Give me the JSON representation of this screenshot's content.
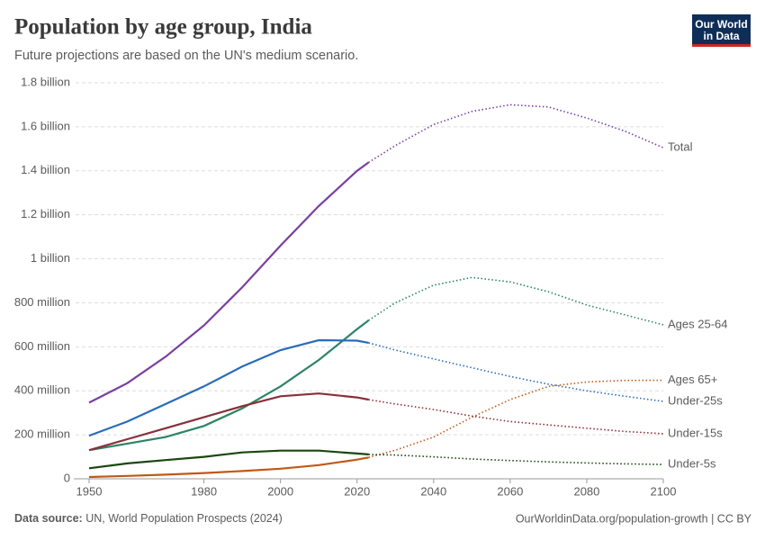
{
  "chart_data": {
    "type": "line",
    "title": "Population by age group, India",
    "subtitle": "Future projections are based on the UN's medium scenario.",
    "logo": [
      "Our World",
      "in Data"
    ],
    "source_label": "Data source:",
    "source": "UN, World Population Prospects (2024)",
    "url": "OurWorldinData.org/population-growth | CC BY",
    "x": [
      1950,
      1960,
      1970,
      1980,
      1990,
      2000,
      2010,
      2020,
      2023,
      2030,
      2040,
      2050,
      2060,
      2070,
      2080,
      2090,
      2100
    ],
    "projection_from": 2023,
    "xlim": [
      1946,
      2100
    ],
    "xticks": [
      1950,
      1980,
      2000,
      2020,
      2040,
      2060,
      2080,
      2100
    ],
    "ylim": [
      0,
      1800
    ],
    "yticks": [
      0,
      {
        "value": 200,
        "label": "200 million"
      },
      {
        "value": 400,
        "label": "400 million"
      },
      {
        "value": 600,
        "label": "600 million"
      },
      {
        "value": 800,
        "label": "800 million"
      },
      {
        "value": 1000,
        "label": "1 billion"
      },
      {
        "value": 1200,
        "label": "1.2 billion"
      },
      {
        "value": 1400,
        "label": "1.4 billion"
      },
      {
        "value": 1600,
        "label": "1.6 billion"
      },
      {
        "value": 1800,
        "label": "1.8 billion"
      }
    ],
    "grid": true,
    "series": [
      {
        "name": "Total",
        "color": "#7a3fa0",
        "values": [
          346,
          435,
          555,
          697,
          870,
          1060,
          1240,
          1400,
          1438,
          1515,
          1610,
          1670,
          1700,
          1690,
          1640,
          1580,
          1505
        ]
      },
      {
        "name": "Ages 25-64",
        "color": "#2c8465",
        "values": [
          130,
          160,
          190,
          240,
          320,
          420,
          540,
          680,
          720,
          800,
          880,
          915,
          895,
          850,
          790,
          745,
          700
        ]
      },
      {
        "name": "Ages 65+",
        "color": "#c05917",
        "values": [
          8,
          13,
          19,
          26,
          35,
          46,
          62,
          87,
          97,
          130,
          190,
          280,
          360,
          420,
          440,
          447,
          448
        ]
      },
      {
        "name": "Under-25s",
        "color": "#286bbb",
        "values": [
          196,
          260,
          340,
          420,
          510,
          585,
          630,
          628,
          618,
          585,
          545,
          505,
          465,
          430,
          400,
          375,
          352
        ]
      },
      {
        "name": "Under-15s",
        "color": "#883039",
        "values": [
          130,
          180,
          230,
          280,
          330,
          375,
          388,
          370,
          360,
          340,
          315,
          285,
          260,
          245,
          230,
          215,
          205
        ]
      },
      {
        "name": "Under-5s",
        "color": "#18470f",
        "values": [
          48,
          70,
          85,
          100,
          120,
          128,
          128,
          115,
          111,
          108,
          100,
          90,
          83,
          77,
          72,
          68,
          65
        ]
      }
    ]
  }
}
